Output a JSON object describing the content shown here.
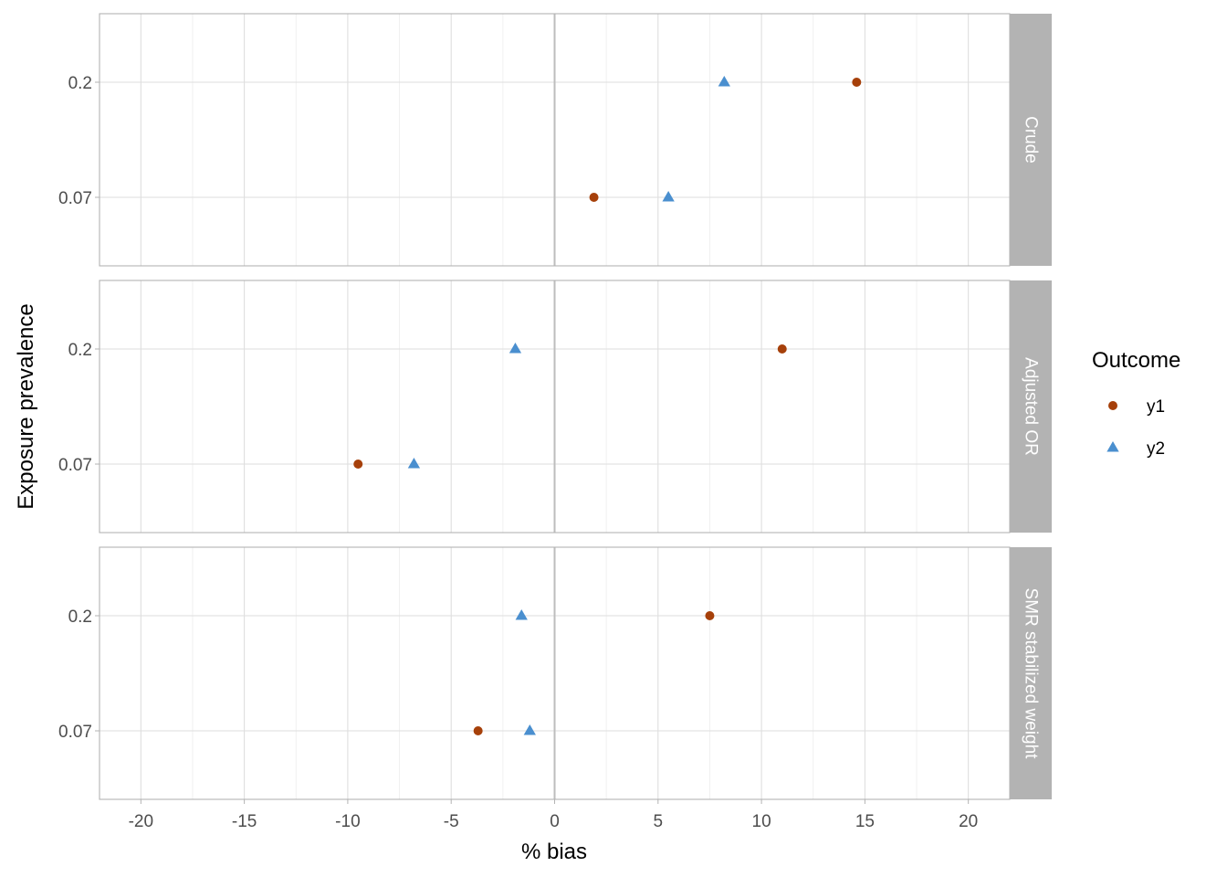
{
  "chart_data": {
    "type": "scatter",
    "xlabel": "% bias",
    "ylabel": "Exposure prevalence",
    "xlim": [
      -22,
      22
    ],
    "x_ticks": [
      "-20",
      "-15",
      "-10",
      "-5",
      "0",
      "5",
      "10",
      "15",
      "20"
    ],
    "y_categories": [
      "0.07",
      "0.2"
    ],
    "reference_line_x": 0,
    "grid": true,
    "legend": {
      "title": "Outcome",
      "position": "right",
      "items": [
        {
          "label": "y1",
          "shape": "circle",
          "color": "#A6400A"
        },
        {
          "label": "y2",
          "shape": "triangle",
          "color": "#4A8FCF"
        }
      ]
    },
    "panels": [
      {
        "strip": "Crude",
        "points": [
          {
            "series": "y1",
            "x": 14.6,
            "y": "0.2"
          },
          {
            "series": "y2",
            "x": 8.2,
            "y": "0.2"
          },
          {
            "series": "y1",
            "x": 1.9,
            "y": "0.07"
          },
          {
            "series": "y2",
            "x": 5.5,
            "y": "0.07"
          }
        ]
      },
      {
        "strip": "Adjusted OR",
        "points": [
          {
            "series": "y1",
            "x": 11.0,
            "y": "0.2"
          },
          {
            "series": "y2",
            "x": -1.9,
            "y": "0.2"
          },
          {
            "series": "y1",
            "x": -9.5,
            "y": "0.07"
          },
          {
            "series": "y2",
            "x": -6.8,
            "y": "0.07"
          }
        ]
      },
      {
        "strip": "SMR stabilized weight",
        "points": [
          {
            "series": "y1",
            "x": 7.5,
            "y": "0.2"
          },
          {
            "series": "y2",
            "x": -1.6,
            "y": "0.2"
          },
          {
            "series": "y1",
            "x": -3.7,
            "y": "0.07"
          },
          {
            "series": "y2",
            "x": -1.2,
            "y": "0.07"
          }
        ]
      }
    ]
  }
}
